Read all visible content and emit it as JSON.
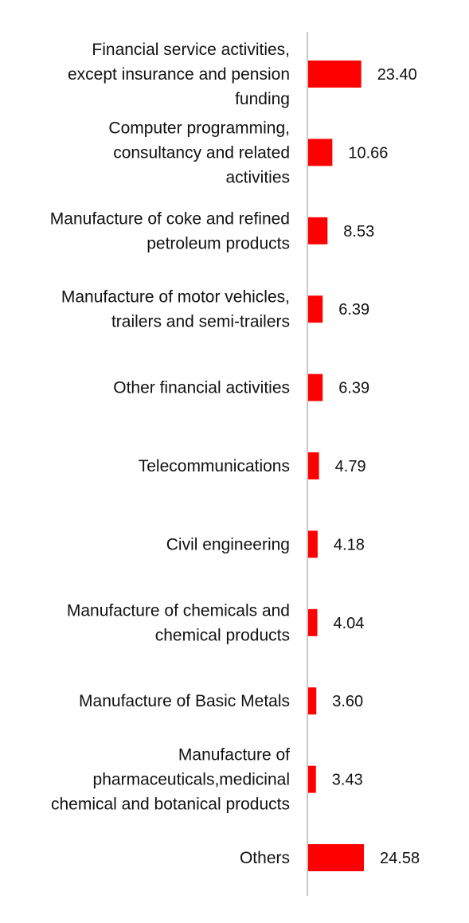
{
  "chart_data": {
    "type": "bar",
    "orientation": "horizontal",
    "categories": [
      [
        "Financial service activities,",
        "except insurance and pension",
        "funding"
      ],
      [
        "Computer programming,",
        "consultancy and related",
        "activities"
      ],
      [
        "Manufacture of coke and refined",
        "petroleum products"
      ],
      [
        "Manufacture of motor vehicles,",
        "trailers and semi-trailers"
      ],
      [
        "Other financial activities"
      ],
      [
        "Telecommunications"
      ],
      [
        "Civil engineering"
      ],
      [
        "Manufacture of chemicals and",
        "chemical products"
      ],
      [
        "Manufacture of Basic Metals"
      ],
      [
        "Manufacture of",
        "pharmaceuticals,medicinal",
        "chemical and botanical products"
      ],
      [
        "Others"
      ]
    ],
    "values": [
      23.4,
      10.66,
      8.53,
      6.39,
      6.39,
      4.79,
      4.18,
      4.04,
      3.6,
      3.43,
      24.58
    ],
    "value_labels": [
      "23.40",
      "10.66",
      "8.53",
      "6.39",
      "6.39",
      "4.79",
      "4.18",
      "4.04",
      "3.60",
      "3.43",
      "24.58"
    ],
    "bar_color": "#ff0000",
    "axis_color": "#c8c8c8",
    "grid": false,
    "legend": "none"
  }
}
